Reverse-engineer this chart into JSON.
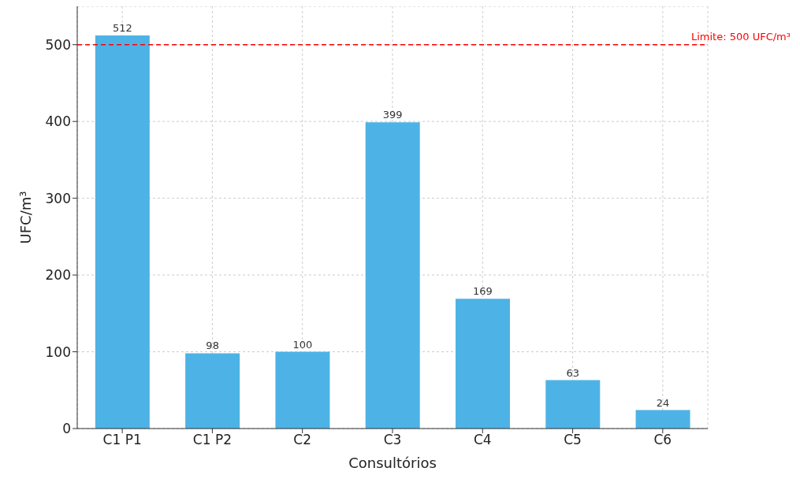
{
  "chart_data": {
    "type": "bar",
    "xlabel": "Consultórios",
    "ylabel": "UFC/m³",
    "categories": [
      "C1 P1",
      "C1 P2",
      "C2",
      "C3",
      "C4",
      "C5",
      "C6"
    ],
    "values": [
      512,
      98,
      100,
      399,
      169,
      63,
      24
    ],
    "color": "#4db3e6",
    "ylim": [
      0,
      550
    ],
    "yticks": [
      0,
      100,
      200,
      300,
      400,
      500
    ],
    "grid": true,
    "data_labels": true,
    "ref_lines": [
      {
        "axis": "y",
        "value": 500,
        "label": "Limite: 500 UFC/m³",
        "color": "#ff0000",
        "line_style": "dashed"
      }
    ]
  }
}
